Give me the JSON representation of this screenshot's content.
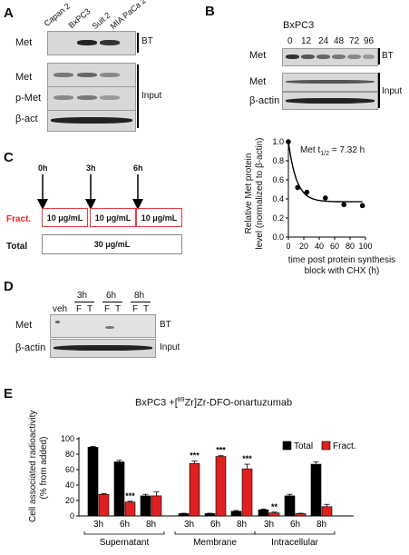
{
  "panels": {
    "a": "A",
    "b": "B",
    "c": "C",
    "d": "D",
    "e": "E"
  },
  "panelA": {
    "lanes": [
      "Capan 2",
      "BxPC3",
      "Suit 2",
      "MIA PaCa 2"
    ],
    "rows": [
      "Met",
      "Met",
      "p-Met",
      "β-act"
    ],
    "groups": {
      "bt": "BT",
      "input": "Input"
    }
  },
  "panelB": {
    "cell_line": "BxPC3",
    "timepoints": [
      "0",
      "12",
      "24",
      "48",
      "72",
      "96"
    ],
    "rows": [
      "Met",
      "Met",
      "β-actin"
    ],
    "groups": {
      "bt": "BT",
      "input": "Input"
    }
  },
  "decay_plot": {
    "annotation_prefix": "Met t",
    "annotation_sub": "1/2",
    "annotation_suffix": "= 7.32 h",
    "ylabel_line1": "Relative Met protein",
    "ylabel_line2": "level (normalized to β-actin)",
    "xlabel_line1": "time post protein synthesis",
    "xlabel_line2": "block with CHX (h)",
    "yticks": [
      "0.0",
      "0.2",
      "0.4",
      "0.6",
      "0.8",
      "1.0"
    ],
    "xticks": [
      "0",
      "20",
      "40",
      "60",
      "80",
      "100"
    ]
  },
  "panelC": {
    "times": [
      "0h",
      "3h",
      "6h"
    ],
    "fract_label": "Fract.",
    "fract_doses": [
      "10 μg/mL",
      "10 μg/mL",
      "10 μg/mL"
    ],
    "total_label": "Total",
    "total_dose": "30 μg/mL",
    "accent": "#e03030"
  },
  "panelD": {
    "veh": "veh",
    "times": [
      "3h",
      "6h",
      "8h"
    ],
    "lane_labels": [
      "F",
      "T",
      "F",
      "T",
      "F",
      "T"
    ],
    "rows": [
      "Met",
      "β-actin"
    ],
    "groups": {
      "bt": "BT",
      "input": "Input"
    }
  },
  "panelE": {
    "title_prefix": "BxPC3 +[",
    "title_sup": "89",
    "title_suffix": "Zr]Zr-DFO-onartuzumab",
    "ylabel_line1": "Cell associated radioactivity",
    "ylabel_line2": "(% from added)",
    "legend": [
      "Total",
      "Fract."
    ],
    "colors": {
      "total": "#000000",
      "fract": "#e02020"
    },
    "groups": [
      "Supernatant",
      "Membrane",
      "Intracellular"
    ],
    "time_labels": [
      "3h",
      "6h",
      "8h"
    ],
    "yticks": [
      "0",
      "20",
      "40",
      "60",
      "80",
      "100"
    ]
  },
  "chart_data": [
    {
      "type": "scatter",
      "title": "Met t1/2 = 7.32 h",
      "xlabel": "time post protein synthesis block with CHX (h)",
      "ylabel": "Relative Met protein level (normalized to β-actin)",
      "xlim": [
        0,
        100
      ],
      "ylim": [
        0,
        1.0
      ],
      "x": [
        0,
        12,
        24,
        48,
        72,
        96
      ],
      "y": [
        1.0,
        0.52,
        0.47,
        0.41,
        0.34,
        0.33
      ],
      "fit": "exponential decay"
    },
    {
      "type": "bar",
      "title": "BxPC3 +[89Zr]Zr-DFO-onartuzumab",
      "ylabel": "Cell associated radioactivity (% from added)",
      "ylim": [
        0,
        100
      ],
      "categories": [
        "Supernatant 3h",
        "Supernatant 6h",
        "Supernatant 8h",
        "Membrane 3h",
        "Membrane 6h",
        "Membrane 8h",
        "Intracellular 3h",
        "Intracellular 6h",
        "Intracellular 8h"
      ],
      "series": [
        {
          "name": "Total",
          "values": [
            89,
            70,
            26,
            3,
            3,
            6,
            8,
            26,
            67
          ],
          "errors": [
            1,
            2,
            2,
            0.5,
            0.5,
            1,
            1,
            2,
            3
          ]
        },
        {
          "name": "Fract.",
          "values": [
            28,
            18,
            26,
            68,
            77,
            61,
            4,
            3,
            12
          ],
          "errors": [
            1,
            1,
            5,
            3,
            1,
            6,
            1,
            0.5,
            3
          ]
        }
      ],
      "significance": [
        "",
        "***",
        "",
        "***",
        "***",
        "***",
        "**",
        "",
        ""
      ]
    }
  ]
}
